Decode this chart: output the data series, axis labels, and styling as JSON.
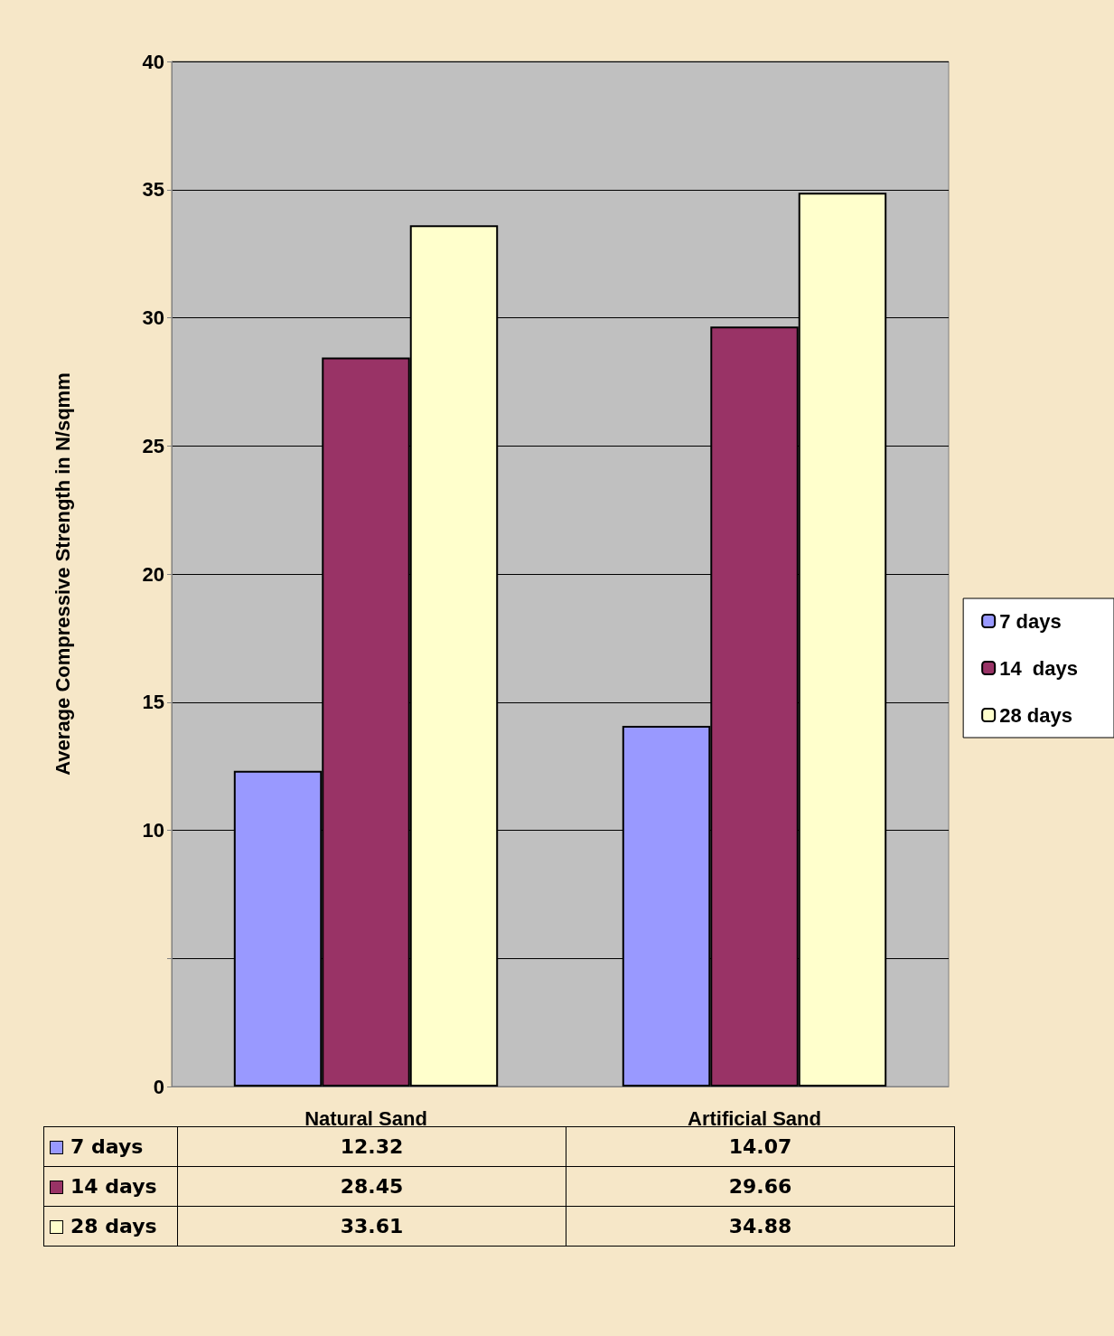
{
  "chart_data": {
    "type": "bar",
    "ylabel": "Average Compressive Strength in N/sqmm",
    "categories": [
      "Natural Sand",
      "Artificial Sand"
    ],
    "series": [
      {
        "name": "7 days",
        "color": "#9999ff",
        "values": [
          12.32,
          14.07
        ]
      },
      {
        "name": "14  days",
        "color": "#993366",
        "values": [
          28.45,
          29.66
        ]
      },
      {
        "name": "28 days",
        "color": "#ffffcc",
        "values": [
          33.61,
          34.88
        ]
      }
    ],
    "ylim": [
      0,
      40
    ],
    "yticks": [
      0,
      {
        "value": 5,
        "label": null
      },
      10,
      15,
      20,
      25,
      30,
      35,
      40
    ],
    "grid": "y",
    "legend": "right",
    "data_labels": true
  }
}
